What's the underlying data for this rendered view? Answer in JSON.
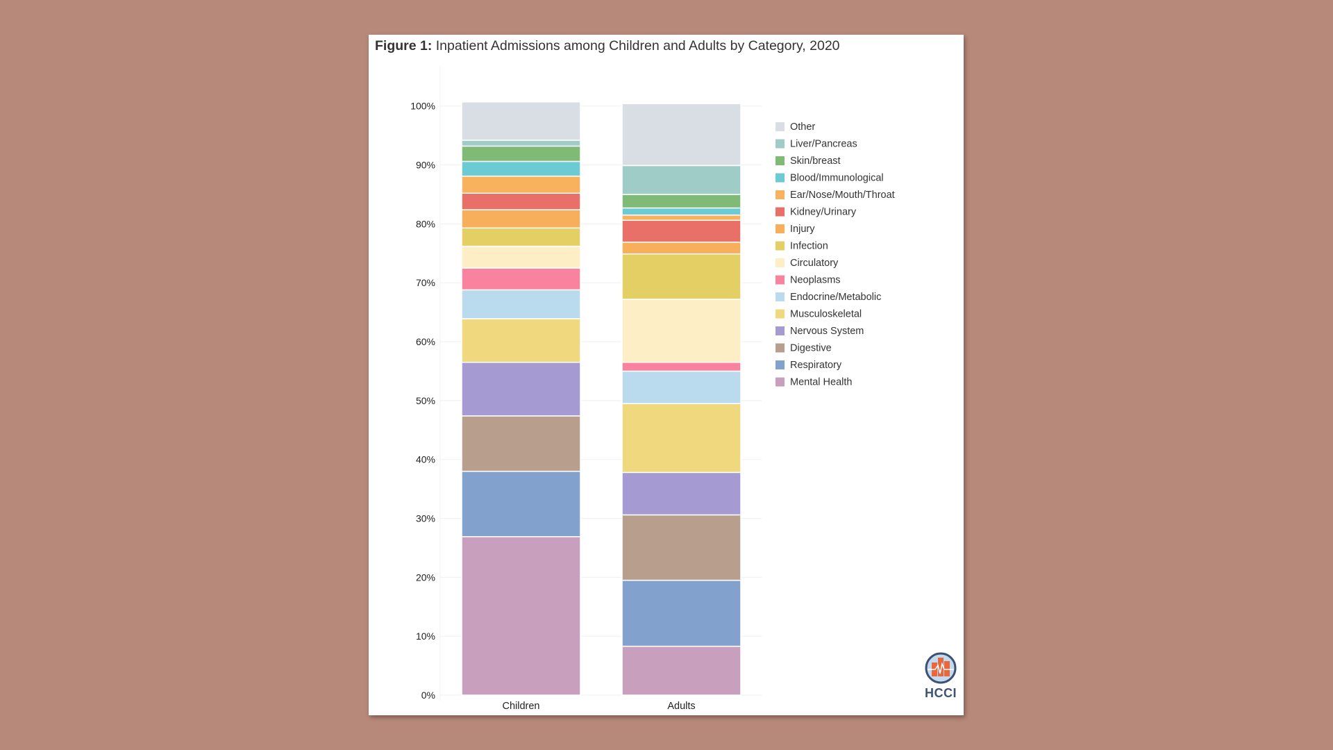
{
  "figure": {
    "label": "Figure 1:",
    "title": "Inpatient Admissions among Children and Adults by Category, 2020"
  },
  "logo": {
    "text": "HCCI"
  },
  "chart_data": {
    "type": "bar",
    "stacked": true,
    "title": "Inpatient Admissions among Children and Adults by Category, 2020",
    "xlabel": "",
    "ylabel": "",
    "ylim": [
      0,
      100
    ],
    "yticks": [
      "0%",
      "10%",
      "20%",
      "30%",
      "40%",
      "50%",
      "60%",
      "70%",
      "80%",
      "90%",
      "100%"
    ],
    "grid": true,
    "legend_position": "right",
    "categories": [
      "Children",
      "Adults"
    ],
    "series": [
      {
        "name": "Mental Health",
        "color": "#c8a0be",
        "values": [
          26.9,
          8.3
        ]
      },
      {
        "name": "Respiratory",
        "color": "#82a2cd",
        "values": [
          11.1,
          11.2
        ]
      },
      {
        "name": "Digestive",
        "color": "#b89e8c",
        "values": [
          9.4,
          11.1
        ]
      },
      {
        "name": "Nervous System",
        "color": "#a59bd2",
        "values": [
          9.1,
          7.2
        ]
      },
      {
        "name": "Musculoskeletal",
        "color": "#f0d87e",
        "values": [
          7.4,
          11.7
        ]
      },
      {
        "name": "Endocrine/Metabolic",
        "color": "#badaee",
        "values": [
          4.9,
          5.5
        ]
      },
      {
        "name": "Neoplasms",
        "color": "#f9829e",
        "values": [
          3.7,
          1.5
        ]
      },
      {
        "name": "Circulatory",
        "color": "#fdeec6",
        "values": [
          3.7,
          10.7
        ]
      },
      {
        "name": "Infection",
        "color": "#e3cf63",
        "values": [
          3.1,
          7.7
        ]
      },
      {
        "name": "Injury",
        "color": "#f8af5c",
        "values": [
          3.1,
          2.0
        ]
      },
      {
        "name": "Kidney/Urinary",
        "color": "#e87068",
        "values": [
          2.8,
          3.7
        ]
      },
      {
        "name": "Ear/Nose/Mouth/Throat",
        "color": "#f8b25e",
        "values": [
          2.9,
          0.9
        ]
      },
      {
        "name": "Blood/Immunological",
        "color": "#6accd2",
        "values": [
          2.5,
          1.2
        ]
      },
      {
        "name": "Skin/breast",
        "color": "#7fba76",
        "values": [
          2.6,
          2.3
        ]
      },
      {
        "name": "Liver/Pancreas",
        "color": "#a0ccc8",
        "values": [
          1.0,
          4.9
        ]
      },
      {
        "name": "Other",
        "color": "#d9dde4",
        "values": [
          6.5,
          10.5
        ]
      }
    ]
  }
}
